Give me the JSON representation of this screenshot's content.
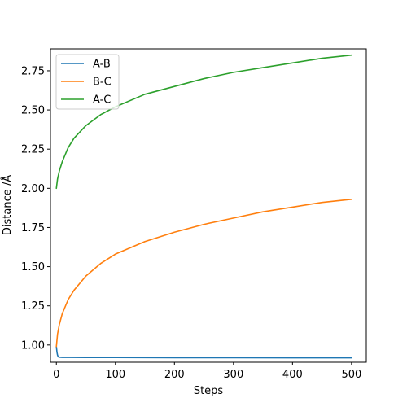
{
  "chart_data": {
    "type": "line",
    "title": "",
    "xlabel": "Steps",
    "ylabel": "Distance /Å",
    "xlim": [
      -10,
      525
    ],
    "ylim": [
      0.89,
      2.89
    ],
    "xticks": [
      0,
      100,
      200,
      300,
      400,
      500
    ],
    "yticks": [
      1.0,
      1.25,
      1.5,
      1.75,
      2.0,
      2.25,
      2.5,
      2.75
    ],
    "ytick_labels": [
      "1.00",
      "1.25",
      "1.50",
      "1.75",
      "2.00",
      "2.25",
      "2.50",
      "2.75"
    ],
    "grid": false,
    "legend": "upper-left",
    "series": [
      {
        "name": "A-B",
        "color": "#1f77b4",
        "x": [
          0,
          1,
          2,
          3,
          4,
          5,
          10,
          25,
          50,
          100,
          200,
          300,
          400,
          500
        ],
        "y": [
          0.99,
          0.955,
          0.935,
          0.926,
          0.923,
          0.922,
          0.921,
          0.921,
          0.92,
          0.92,
          0.919,
          0.919,
          0.918,
          0.918
        ]
      },
      {
        "name": "B-C",
        "color": "#ff7f0e",
        "x": [
          0,
          2,
          5,
          10,
          20,
          30,
          50,
          75,
          100,
          150,
          200,
          250,
          300,
          350,
          400,
          450,
          500
        ],
        "y": [
          0.99,
          1.07,
          1.13,
          1.2,
          1.29,
          1.35,
          1.44,
          1.52,
          1.58,
          1.66,
          1.72,
          1.77,
          1.81,
          1.85,
          1.88,
          1.91,
          1.93
        ]
      },
      {
        "name": "A-C",
        "color": "#2ca02c",
        "x": [
          0,
          2,
          5,
          10,
          20,
          30,
          50,
          75,
          100,
          150,
          200,
          250,
          300,
          350,
          400,
          450,
          500
        ],
        "y": [
          2.0,
          2.06,
          2.11,
          2.17,
          2.26,
          2.32,
          2.4,
          2.47,
          2.52,
          2.6,
          2.65,
          2.7,
          2.74,
          2.77,
          2.8,
          2.83,
          2.85
        ]
      }
    ]
  }
}
